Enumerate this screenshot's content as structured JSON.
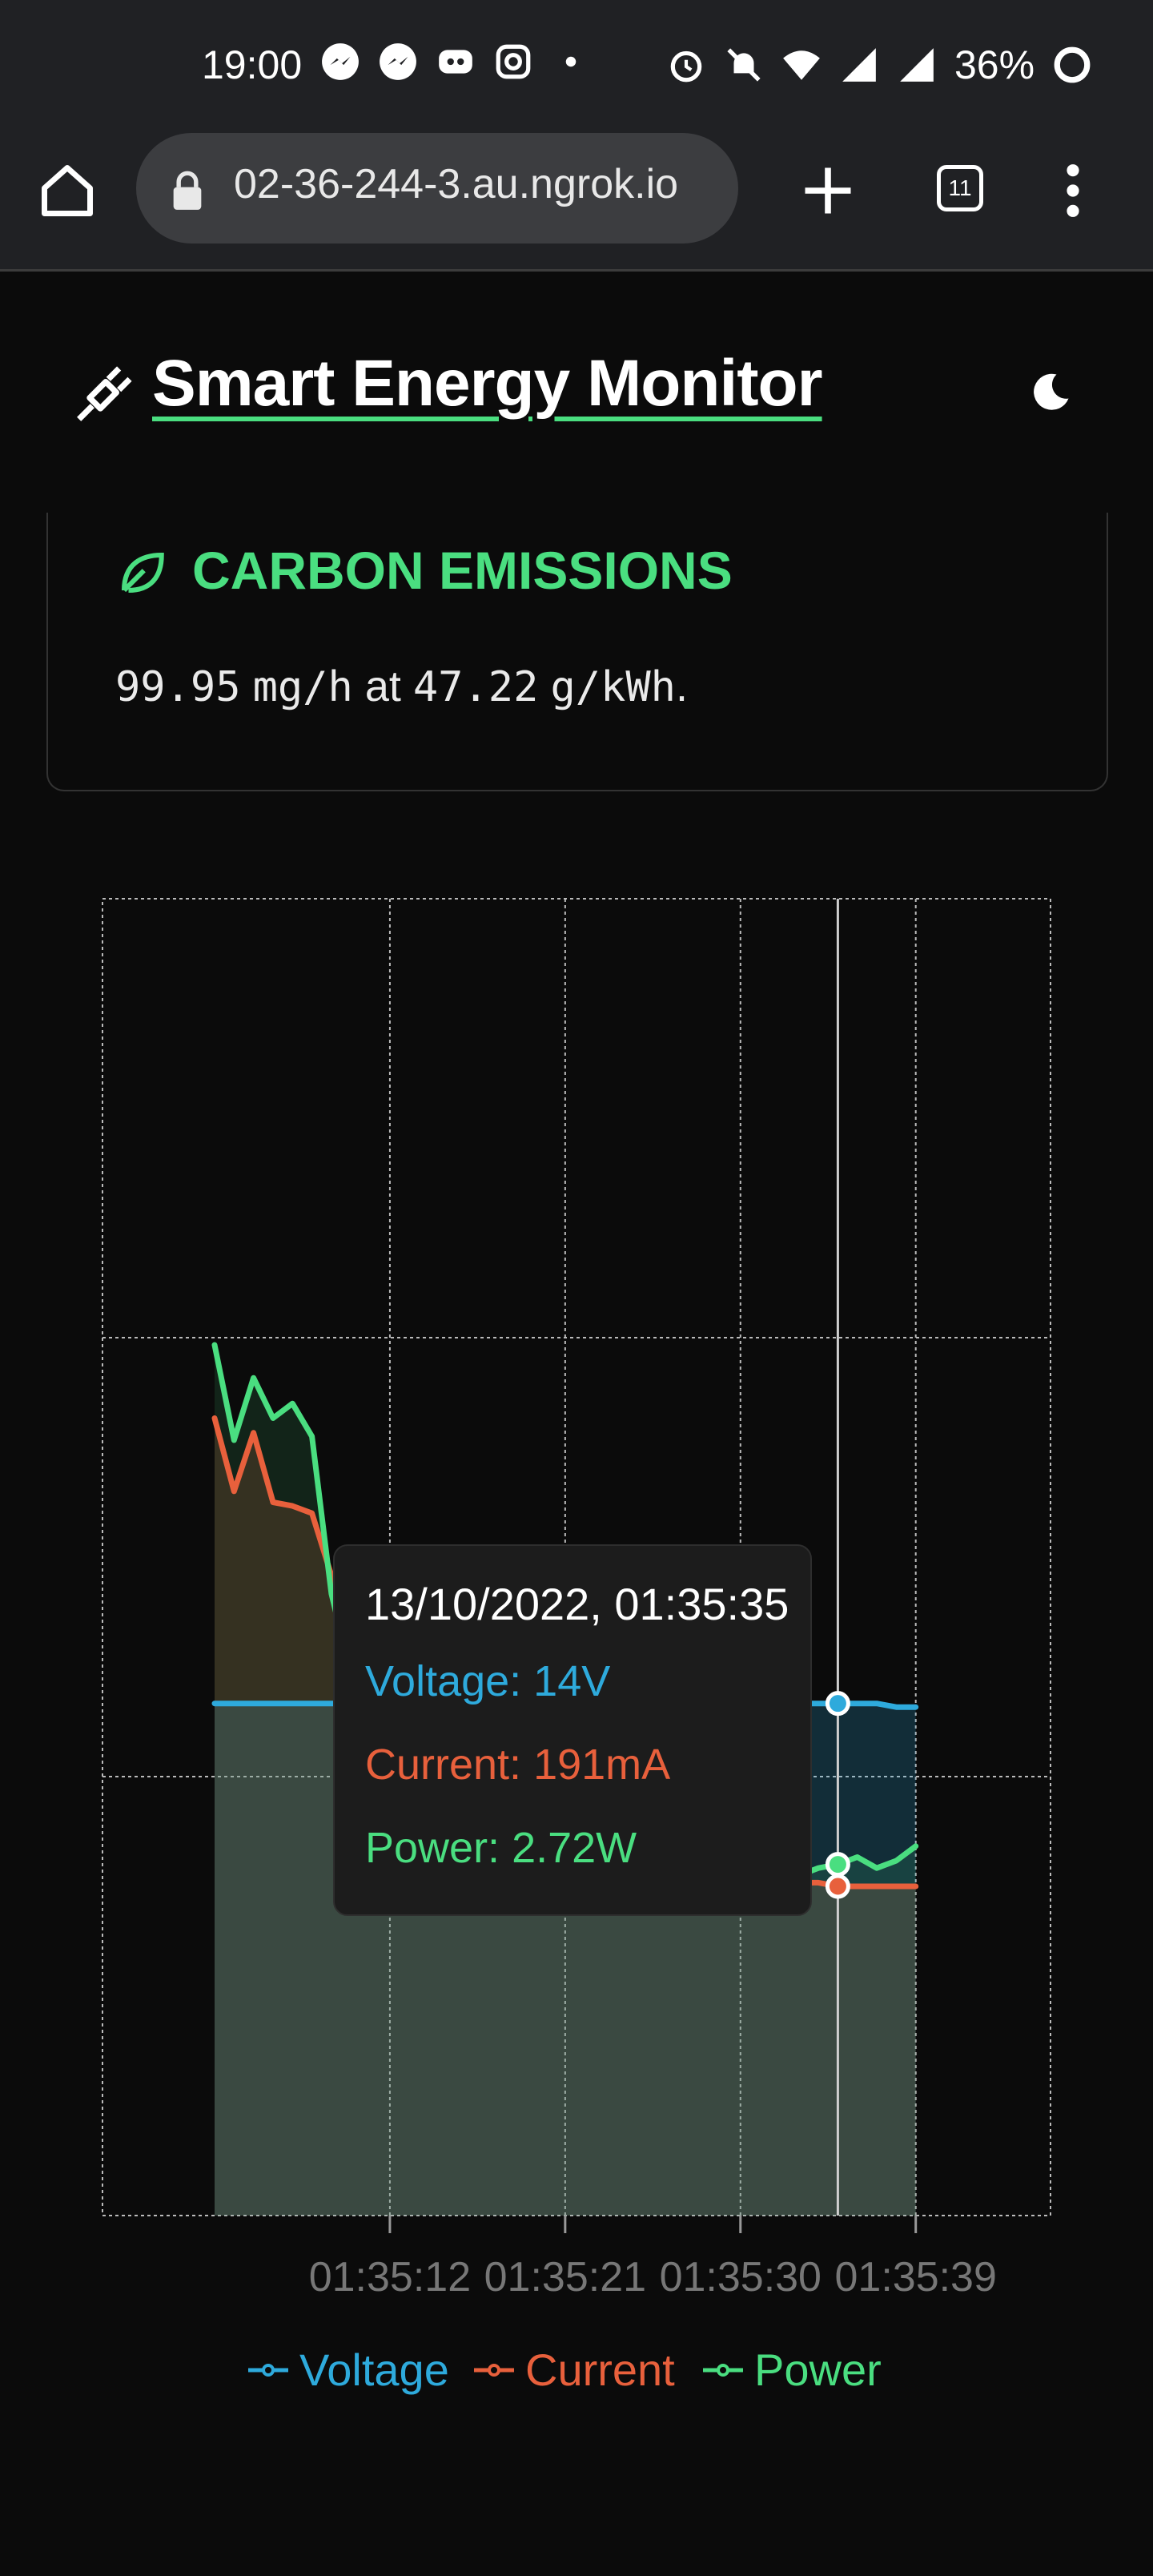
{
  "status_bar": {
    "time": "19:00",
    "battery": "36%",
    "icons_left": [
      "messenger-icon",
      "messenger-icon",
      "discord-icon",
      "instagram-icon",
      "dot-icon"
    ],
    "icons_right": [
      "alarm-icon",
      "bell-off-icon",
      "wifi-icon",
      "signal-icon",
      "signal-icon"
    ]
  },
  "browser": {
    "url": "02-36-244-3.au.ngrok.io",
    "tab_count": "11"
  },
  "header": {
    "title": "Smart Energy Monitor"
  },
  "carbon": {
    "title": "CARBON EMISSIONS",
    "value": "99.95",
    "value_unit": "mg/h",
    "at": "at",
    "intensity": "47.22",
    "intensity_unit": "g/kWh",
    "period": "."
  },
  "tooltip": {
    "title": "13/10/2022, 01:35:35",
    "voltage": "Voltage: 14V",
    "current": "Current: 191mA",
    "power": "Power: 2.72W"
  },
  "colors": {
    "voltage": "#2eaadc",
    "current": "#e8603c",
    "power": "#4ade80",
    "accent": "#4ade80"
  },
  "chart_data": {
    "type": "area",
    "x": [
      "01:35:03",
      "01:35:04",
      "01:35:05",
      "01:35:06",
      "01:35:07",
      "01:35:08",
      "01:35:09",
      "01:35:10",
      "01:35:11",
      "01:35:12",
      "01:35:13",
      "01:35:14",
      "01:35:15",
      "01:35:16",
      "01:35:17",
      "01:35:18",
      "01:35:19",
      "01:35:20",
      "01:35:21",
      "01:35:22",
      "01:35:23",
      "01:35:24",
      "01:35:25",
      "01:35:26",
      "01:35:27",
      "01:35:28",
      "01:35:29",
      "01:35:30",
      "01:35:31",
      "01:35:32",
      "01:35:33",
      "01:35:34",
      "01:35:35",
      "01:35:36",
      "01:35:37",
      "01:35:38",
      "01:35:39"
    ],
    "x_ticks": [
      "01:35:12",
      "01:35:21",
      "01:35:30",
      "01:35:39"
    ],
    "series": [
      {
        "name": "Voltage",
        "values": [
          14.0,
          14.0,
          14.0,
          14.0,
          14.0,
          14.0,
          14.0,
          14.0,
          14.0,
          14.0,
          14.0,
          14.0,
          14.0,
          14.0,
          14.0,
          14.0,
          14.0,
          14.0,
          14.0,
          14.0,
          14.0,
          14.0,
          14.0,
          14.0,
          14.0,
          14.0,
          14.0,
          14.0,
          14.0,
          14.0,
          14.0,
          14.0,
          14.0,
          14.0,
          14.0,
          13.9,
          13.9
        ]
      },
      {
        "name": "Current",
        "values": [
          21.8,
          19.8,
          21.4,
          19.5,
          19.4,
          19.2,
          17.5,
          15.0,
          13.0,
          12.2,
          11.4,
          10.9,
          10.6,
          10.3,
          10.1,
          9.9,
          9.7,
          9.6,
          9.5,
          9.4,
          9.3,
          9.2,
          9.2,
          9.1,
          9.1,
          9.1,
          9.1,
          9.1,
          9.1,
          9.1,
          9.1,
          9.1,
          9.0,
          9.0,
          9.0,
          9.0,
          9.0
        ]
      },
      {
        "name": "Power",
        "values": [
          23.8,
          21.2,
          22.9,
          21.8,
          22.2,
          21.3,
          17.0,
          14.8,
          13.6,
          13.1,
          12.3,
          11.5,
          10.9,
          10.4,
          10.1,
          9.8,
          9.7,
          9.6,
          9.5,
          9.4,
          9.3,
          9.2,
          9.2,
          9.1,
          9.1,
          9.1,
          9.2,
          9.2,
          9.1,
          9.4,
          9.3,
          9.5,
          9.6,
          9.8,
          9.5,
          9.7,
          10.1
        ]
      }
    ],
    "legend": [
      "Voltage",
      "Current",
      "Power"
    ],
    "legend_position": "bottom",
    "ylim": [
      0,
      36
    ],
    "grid": true,
    "hover_index": 32
  }
}
